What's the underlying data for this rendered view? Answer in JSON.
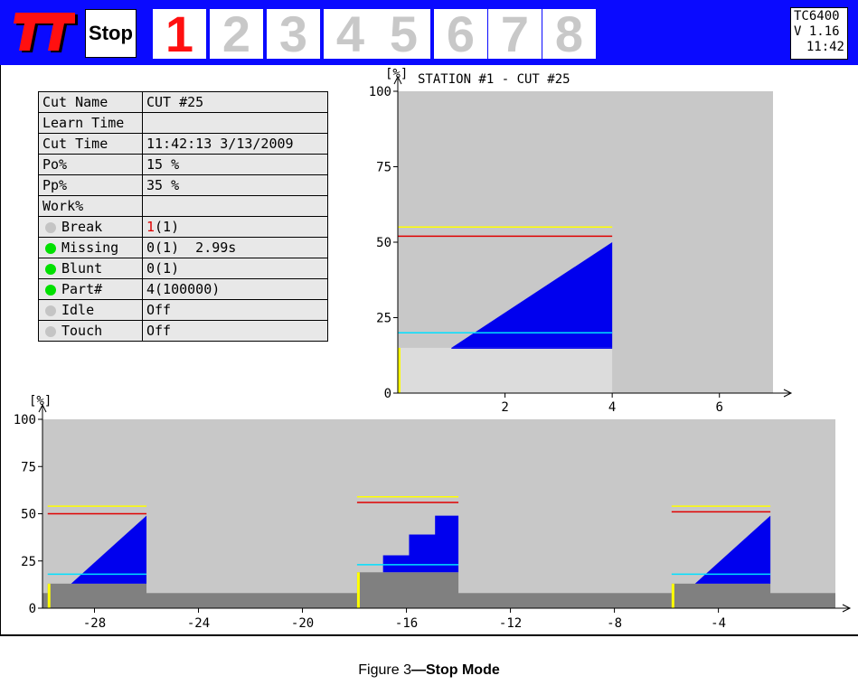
{
  "header": {
    "logo": "TT",
    "mode_label": "Stop",
    "stations": [
      "1",
      "2",
      "3",
      "4",
      "5",
      "6",
      "7",
      "8"
    ],
    "active_station": "1",
    "model": "TC6400",
    "version": "V 1.16",
    "time": "11:42"
  },
  "info_table": {
    "rows": [
      {
        "label": "Cut Name",
        "value": "CUT #25"
      },
      {
        "label": "Learn Time",
        "value": ""
      },
      {
        "label": "Cut Time",
        "value": "11:42:13 3/13/2009"
      },
      {
        "label": "Po%",
        "value": "15 %"
      },
      {
        "label": "Pp%",
        "value": "35 %"
      },
      {
        "label": "Work%",
        "value": ""
      }
    ],
    "status_rows": [
      {
        "label": "Break",
        "indicator": "grey",
        "count": "1",
        "value": "(1)"
      },
      {
        "label": "Missing",
        "indicator": "green",
        "count": "",
        "value": "0(1)  2.99s"
      },
      {
        "label": "Blunt",
        "indicator": "green",
        "count": "",
        "value": "0(1)"
      },
      {
        "label": "Part#",
        "indicator": "green",
        "count": "",
        "value": "4(100000)"
      },
      {
        "label": "Idle",
        "indicator": "grey",
        "count": "",
        "value": "Off"
      },
      {
        "label": "Touch",
        "indicator": "grey",
        "count": "",
        "value": "Off"
      }
    ]
  },
  "colors": {
    "header_bg": "#0a0aff",
    "plot_bg": "#c8c8c8",
    "power_fill": "#0000ee",
    "base_fill_light": "#dcdcdc",
    "base_fill_dark": "#808080",
    "limit_yellow": "#ffff00",
    "limit_red": "#e00000",
    "limit_cyan": "#00e0ff",
    "start_marker": "#ffff00"
  },
  "chart_data": [
    {
      "type": "area",
      "title": "STATION #1 - CUT #25",
      "ylabel": "[%]",
      "xlabel": "",
      "xlim": [
        0,
        7
      ],
      "ylim": [
        0,
        100
      ],
      "xticks": [
        "2",
        "4",
        "6"
      ],
      "xtick_values": [
        2,
        4,
        6
      ],
      "yticks": [
        "0",
        "25",
        "50",
        "75",
        "100"
      ],
      "ytick_values": [
        0,
        25,
        50,
        75,
        100
      ],
      "base_level": 15,
      "cut_end": 4,
      "power_x": [
        1,
        4
      ],
      "power_y": [
        15,
        50
      ],
      "limits": {
        "yellow": 55,
        "red": 52,
        "cyan": 20
      }
    },
    {
      "type": "area",
      "title": "",
      "ylabel": "[%]",
      "xlabel": "",
      "xlim": [
        -30,
        0.5
      ],
      "ylim": [
        0,
        100
      ],
      "xticks": [
        "-28",
        "-24",
        "-20",
        "-16",
        "-12",
        "-8",
        "-4"
      ],
      "xtick_values": [
        -28,
        -24,
        -20,
        -16,
        -12,
        -8,
        -4
      ],
      "yticks": [
        "0",
        "25",
        "50",
        "75",
        "100"
      ],
      "ytick_values": [
        0,
        25,
        50,
        75,
        100
      ],
      "idle_level": 8,
      "cuts": [
        {
          "start": -29.8,
          "end": -26,
          "base": 13,
          "shape": "ramp",
          "power_start": -28.9,
          "power_peak": 49,
          "limits": {
            "yellow": 54,
            "red": 50,
            "cyan": 18
          }
        },
        {
          "start": -17.9,
          "end": -14,
          "base": 19,
          "shape": "steps",
          "steps": [
            [
              -17.9,
              19
            ],
            [
              -16.9,
              28
            ],
            [
              -15.9,
              39
            ],
            [
              -14.9,
              49
            ]
          ],
          "limits": {
            "yellow": 59,
            "red": 56,
            "cyan": 23
          }
        },
        {
          "start": -5.8,
          "end": -2,
          "base": 13,
          "shape": "ramp",
          "power_start": -4.9,
          "power_peak": 49,
          "limits": {
            "yellow": 54,
            "red": 51,
            "cyan": 18
          }
        }
      ]
    }
  ],
  "caption": {
    "prefix": "Figure 3",
    "dash": "—",
    "title": "Stop Mode"
  }
}
